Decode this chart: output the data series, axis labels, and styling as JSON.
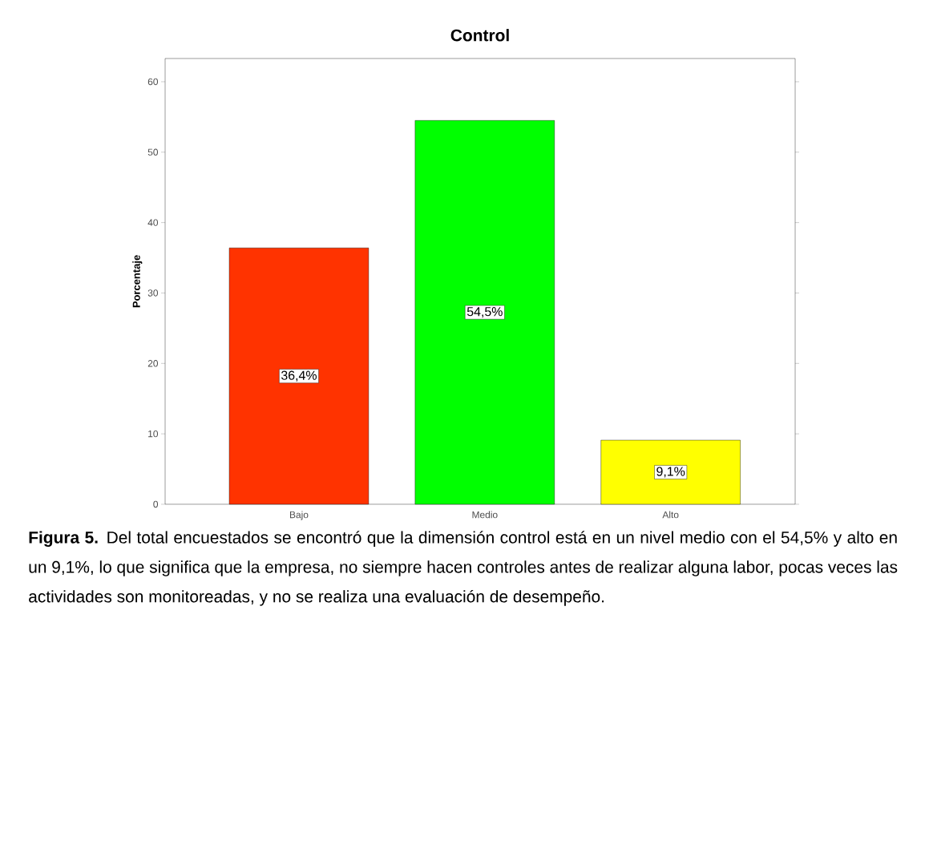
{
  "chart_data": {
    "type": "bar",
    "title": "Control",
    "ylabel": "Porcentaje",
    "categories": [
      "Bajo",
      "Medio",
      "Alto"
    ],
    "values": [
      36.4,
      54.5,
      9.1
    ],
    "colors": [
      "#ff3300",
      "#00ff00",
      "#ffff00"
    ],
    "value_labels": [
      "36,4%",
      "54,5%",
      "9,1%"
    ],
    "ylim": [
      0,
      63.3
    ],
    "yticks": [
      0,
      10,
      20,
      30,
      40,
      50,
      60
    ],
    "grid": false,
    "annotations": [
      "**Figura 5.** Del total encuestados se encontró que la dimensión control está en un nivel medio con el 54,5% y alto en un 9,1%, lo que significa que la empresa, no siempre hacen controles antes de realizar alguna labor, pocas veces las actividades son monitoreadas, y no se realiza una evaluación de desempeño."
    ]
  }
}
